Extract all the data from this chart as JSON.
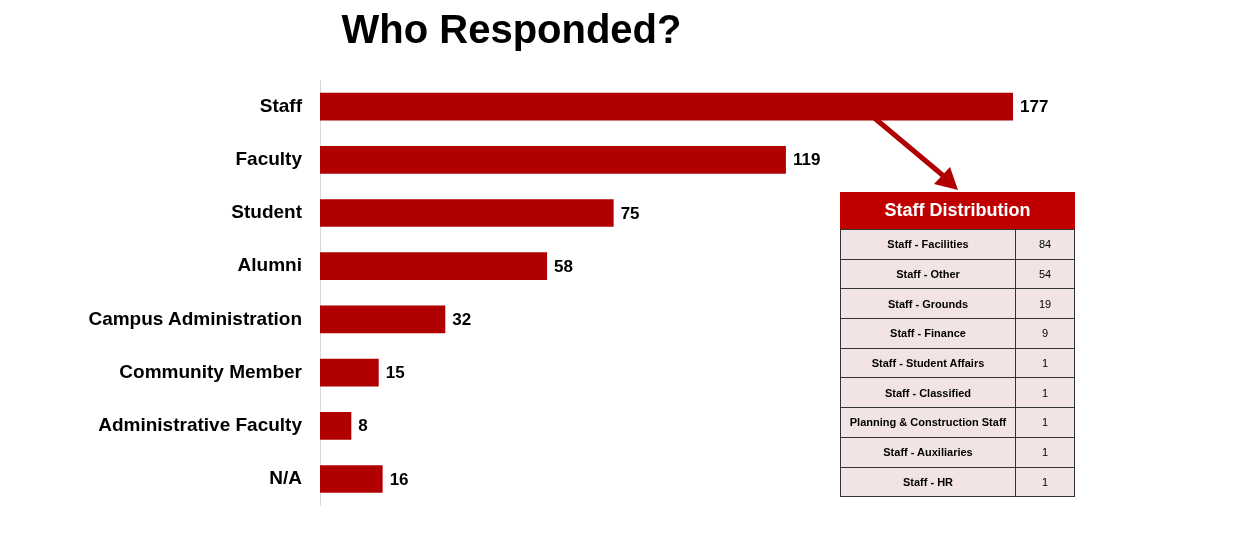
{
  "chart_data": [
    {
      "type": "bar",
      "orientation": "horizontal",
      "title": "Who Responded?",
      "categories": [
        "Staff",
        "Faculty",
        "Student",
        "Alumni",
        "Campus Administration",
        "Community Member",
        "Administrative Faculty",
        "N/A"
      ],
      "values": [
        177,
        119,
        75,
        58,
        32,
        15,
        8,
        16
      ],
      "color": "#b00000",
      "data_labels": true
    },
    {
      "type": "other",
      "title": "Staff Distribution",
      "categories": [
        "Staff - Facilities",
        "Staff - Other",
        "Staff - Grounds",
        "Staff - Finance",
        "Staff - Student Affairs",
        "Staff - Classified",
        "Planning & Construction Staff",
        "Staff - Auxiliaries",
        "Staff - HR"
      ],
      "values": [
        84,
        54,
        19,
        9,
        1,
        1,
        1,
        1,
        1
      ],
      "color": "#f2e4e4",
      "data_labels": true
    }
  ]
}
